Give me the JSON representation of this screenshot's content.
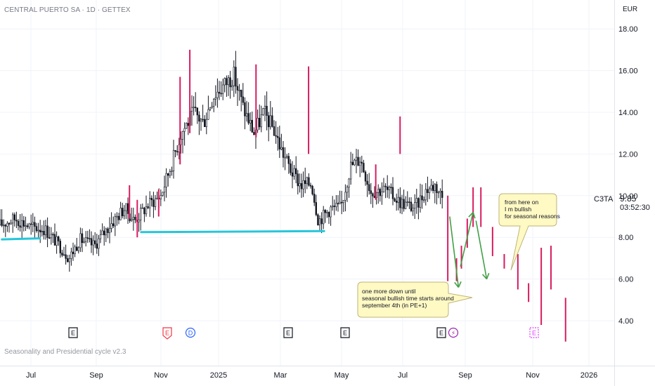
{
  "header": {
    "title": "CENTRAL PUERTO SA · 1D · GETTEX",
    "currency": "EUR"
  },
  "indicator": {
    "label": "Seasonality and Presidential cycle v2.3"
  },
  "price_scale": {
    "symbol": "C3TA",
    "last_price": "9.85",
    "countdown": "03:52:30",
    "ticks": [
      "18.00",
      "16.00",
      "14.00",
      "12.00",
      "10.00",
      "8.00",
      "6.00",
      "4.00"
    ]
  },
  "time_scale": {
    "labels": [
      "Jul",
      "Sep",
      "Nov",
      "2025",
      "Mar",
      "May",
      "Jul",
      "Sep",
      "Nov",
      "2026"
    ]
  },
  "events": [
    {
      "type": "earnings",
      "glyph": "E"
    },
    {
      "type": "earnings-red",
      "glyph": "E"
    },
    {
      "type": "dividend",
      "glyph": "D"
    },
    {
      "type": "earnings",
      "glyph": "E"
    },
    {
      "type": "earnings",
      "glyph": "E"
    },
    {
      "type": "earnings",
      "glyph": "E"
    },
    {
      "type": "split",
      "glyph": "⚡"
    },
    {
      "type": "earnings-future",
      "glyph": "E"
    }
  ],
  "annotations": {
    "callout_1": [
      "from here on",
      "I m bullish",
      "for seasonal reasons"
    ],
    "callout_2": [
      "one more down until",
      "seasonal bullish time starts around",
      "september 4th (in PE+1)"
    ]
  },
  "colors": {
    "candles": "#131722",
    "seasonal_bars": "#d81b60",
    "support_line": "#26c6da",
    "arrows": "#43a047",
    "callout_fill": "#fff9c4",
    "callout_border": "#bdb47a"
  },
  "chart_data": {
    "type": "candlestick",
    "title": "CENTRAL PUERTO SA · 1D · GETTEX",
    "y_unit": "EUR",
    "ylim": [
      3.0,
      18.8
    ],
    "x_range": [
      "2024-05-20",
      "2026-02-10"
    ],
    "last": 9.85,
    "price_path": [
      [
        "2024-05-20",
        8.6
      ],
      [
        "2024-06-05",
        8.9
      ],
      [
        "2024-06-20",
        8.5
      ],
      [
        "2024-07-05",
        8.4
      ],
      [
        "2024-07-20",
        7.6
      ],
      [
        "2024-07-30",
        7.0
      ],
      [
        "2024-08-10",
        7.9
      ],
      [
        "2024-08-25",
        7.6
      ],
      [
        "2024-09-10",
        8.6
      ],
      [
        "2024-09-25",
        9.4
      ],
      [
        "2024-10-05",
        8.8
      ],
      [
        "2024-10-20",
        9.6
      ],
      [
        "2024-11-01",
        10.0
      ],
      [
        "2024-11-12",
        11.5
      ],
      [
        "2024-11-22",
        13.0
      ],
      [
        "2024-12-05",
        14.0
      ],
      [
        "2024-12-15",
        13.5
      ],
      [
        "2024-12-25",
        14.8
      ],
      [
        "2025-01-05",
        15.3
      ],
      [
        "2025-01-15",
        15.8
      ],
      [
        "2025-01-25",
        14.2
      ],
      [
        "2025-02-05",
        13.0
      ],
      [
        "2025-02-15",
        14.0
      ],
      [
        "2025-02-25",
        13.2
      ],
      [
        "2025-03-05",
        12.2
      ],
      [
        "2025-03-15",
        11.2
      ],
      [
        "2025-03-25",
        10.5
      ],
      [
        "2025-04-05",
        10.6
      ],
      [
        "2025-04-12",
        8.8
      ],
      [
        "2025-04-25",
        9.4
      ],
      [
        "2025-05-05",
        9.4
      ],
      [
        "2025-05-15",
        11.4
      ],
      [
        "2025-05-25",
        11.8
      ],
      [
        "2025-06-05",
        10.2
      ],
      [
        "2025-06-20",
        10.3
      ],
      [
        "2025-07-05",
        9.7
      ],
      [
        "2025-07-20",
        9.4
      ],
      [
        "2025-08-01",
        10.3
      ],
      [
        "2025-08-10",
        10.5
      ],
      [
        "2025-08-18",
        9.9
      ]
    ],
    "support_lines": [
      {
        "from": [
          "2024-05-22",
          7.9
        ],
        "to": [
          "2024-06-30",
          7.95
        ]
      },
      {
        "from": [
          "2024-10-12",
          8.25
        ],
        "to": [
          "2025-04-18",
          8.3
        ]
      }
    ],
    "seasonal_bars": [
      {
        "x": "2024-09-30",
        "low": 8.9,
        "high": 10.5
      },
      {
        "x": "2024-10-08",
        "low": 8.0,
        "high": 9.8
      },
      {
        "x": "2024-10-30",
        "low": 9.0,
        "high": 10.3
      },
      {
        "x": "2024-11-21",
        "low": 11.5,
        "high": 15.7
      },
      {
        "x": "2024-12-01",
        "low": 13.0,
        "high": 17.0
      },
      {
        "x": "2025-02-07",
        "low": 12.8,
        "high": 16.3
      },
      {
        "x": "2025-04-02",
        "low": 12.0,
        "high": 16.2
      },
      {
        "x": "2025-06-10",
        "low": 9.8,
        "high": 11.5
      },
      {
        "x": "2025-07-05",
        "low": 12.0,
        "high": 13.8
      },
      {
        "x": "2025-08-23",
        "low": 5.9,
        "high": 10.0
      },
      {
        "x": "2025-09-01",
        "low": 5.9,
        "high": 7.0
      },
      {
        "x": "2025-09-06",
        "low": 6.5,
        "high": 7.6
      },
      {
        "x": "2025-09-12",
        "low": 7.5,
        "high": 8.9
      },
      {
        "x": "2025-09-18",
        "low": 8.5,
        "high": 10.4
      },
      {
        "x": "2025-09-26",
        "low": 8.5,
        "high": 10.4
      },
      {
        "x": "2025-10-08",
        "low": 7.1,
        "high": 8.5
      },
      {
        "x": "2025-10-20",
        "low": 6.5,
        "high": 7.2
      },
      {
        "x": "2025-11-03",
        "low": 5.5,
        "high": 7.2
      },
      {
        "x": "2025-11-14",
        "low": 4.9,
        "high": 5.8
      },
      {
        "x": "2025-11-27",
        "low": 3.8,
        "high": 7.5
      },
      {
        "x": "2025-12-07",
        "low": 5.5,
        "high": 7.6
      },
      {
        "x": "2025-12-22",
        "low": 3.0,
        "high": 5.1
      }
    ],
    "projection_arrows": [
      {
        "from": [
          "2025-08-25",
          9.0
        ],
        "to": [
          "2025-09-03",
          5.6
        ]
      },
      {
        "from": [
          "2025-09-05",
          6.6
        ],
        "to": [
          "2025-09-18",
          9.2
        ]
      },
      {
        "from": [
          "2025-09-21",
          8.8
        ],
        "to": [
          "2025-10-02",
          6.0
        ]
      }
    ]
  }
}
